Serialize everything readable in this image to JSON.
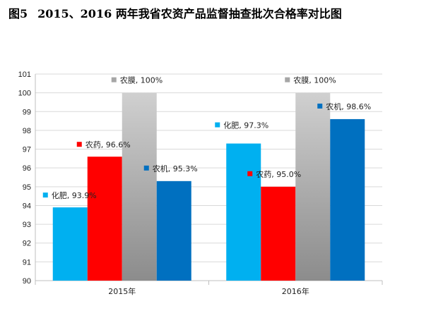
{
  "figure": {
    "number": "图5",
    "title": "2015、2016 两年我省农资产品监督抽查批次合格率对比图"
  },
  "chart_data": {
    "type": "bar",
    "categories": [
      "2015年",
      "2016年"
    ],
    "series": [
      {
        "name": "化肥",
        "color": "#00B0F0",
        "values": [
          93.9,
          97.3
        ],
        "labels": [
          "化肥, 93.9%",
          "化肥, 97.3%"
        ]
      },
      {
        "name": "农药",
        "color": "#FF0000",
        "values": [
          96.6,
          95.0
        ],
        "labels": [
          "农药, 96.6%",
          "农药, 95.0%"
        ]
      },
      {
        "name": "农膜",
        "color": "#A6A6A6",
        "values": [
          100,
          100
        ],
        "labels": [
          "农膜, 100%",
          "农膜, 100%"
        ]
      },
      {
        "name": "农机",
        "color": "#0070C0",
        "values": [
          95.3,
          98.6
        ],
        "labels": [
          "农机, 95.3%",
          "农机, 98.6%"
        ]
      }
    ],
    "ylim": [
      90,
      101
    ],
    "yticks": [
      90,
      91,
      92,
      93,
      94,
      95,
      96,
      97,
      98,
      99,
      100,
      101
    ],
    "grid": true,
    "legend": "none"
  }
}
